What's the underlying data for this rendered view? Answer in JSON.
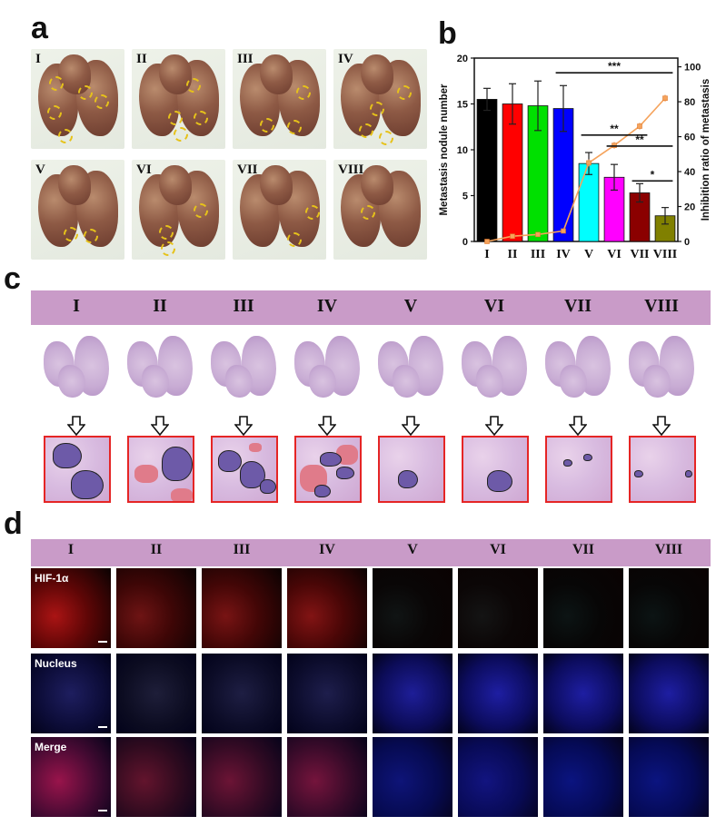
{
  "panel_letters": {
    "a": "a",
    "b": "b",
    "c": "c",
    "d": "d"
  },
  "groups": [
    "I",
    "II",
    "III",
    "IV",
    "V",
    "VI",
    "VII",
    "VIII"
  ],
  "fluorescence_rows": [
    "HIF-1α",
    "Nucleus",
    "Merge"
  ],
  "chart_data": {
    "type": "bar",
    "categories": [
      "I",
      "II",
      "III",
      "IV",
      "V",
      "VI",
      "VII",
      "VIII"
    ],
    "series": [
      {
        "name": "",
        "axis": "left",
        "kind": "bar",
        "values": [
          15.5,
          15.0,
          14.8,
          14.5,
          8.5,
          7.0,
          5.3,
          2.8
        ],
        "errors": [
          1.2,
          2.2,
          2.7,
          2.5,
          1.2,
          1.4,
          1.0,
          0.9
        ]
      },
      {
        "name": "",
        "axis": "right",
        "kind": "line",
        "values": [
          0,
          3,
          4,
          6,
          45,
          55,
          66,
          82
        ],
        "errors": [
          0.5,
          1,
          1,
          1,
          2,
          2,
          2,
          2
        ]
      }
    ],
    "bar_colors": [
      "#000000",
      "#ff0000",
      "#00e000",
      "#0000ff",
      "#00ffff",
      "#ff00ff",
      "#8b0000",
      "#808000"
    ],
    "line_color": "#f5a35c",
    "ylabel": "Metastasis nodule number",
    "y2label": "Inhibition ratio of metastasis",
    "ylim": [
      0,
      20
    ],
    "y2lim": [
      0,
      105
    ],
    "yticks": [
      "0",
      "5",
      "10",
      "15",
      "20"
    ],
    "y2ticks": [
      "0",
      "20",
      "40",
      "60",
      "80",
      "100"
    ],
    "significance": [
      {
        "from": "IV",
        "to": "VIII",
        "label": "***"
      },
      {
        "from": "V",
        "to": "VII",
        "label": "**"
      },
      {
        "from": "VI",
        "to": "VIII",
        "label": "**"
      },
      {
        "from": "VII",
        "to": "VIII",
        "label": "*"
      }
    ]
  }
}
